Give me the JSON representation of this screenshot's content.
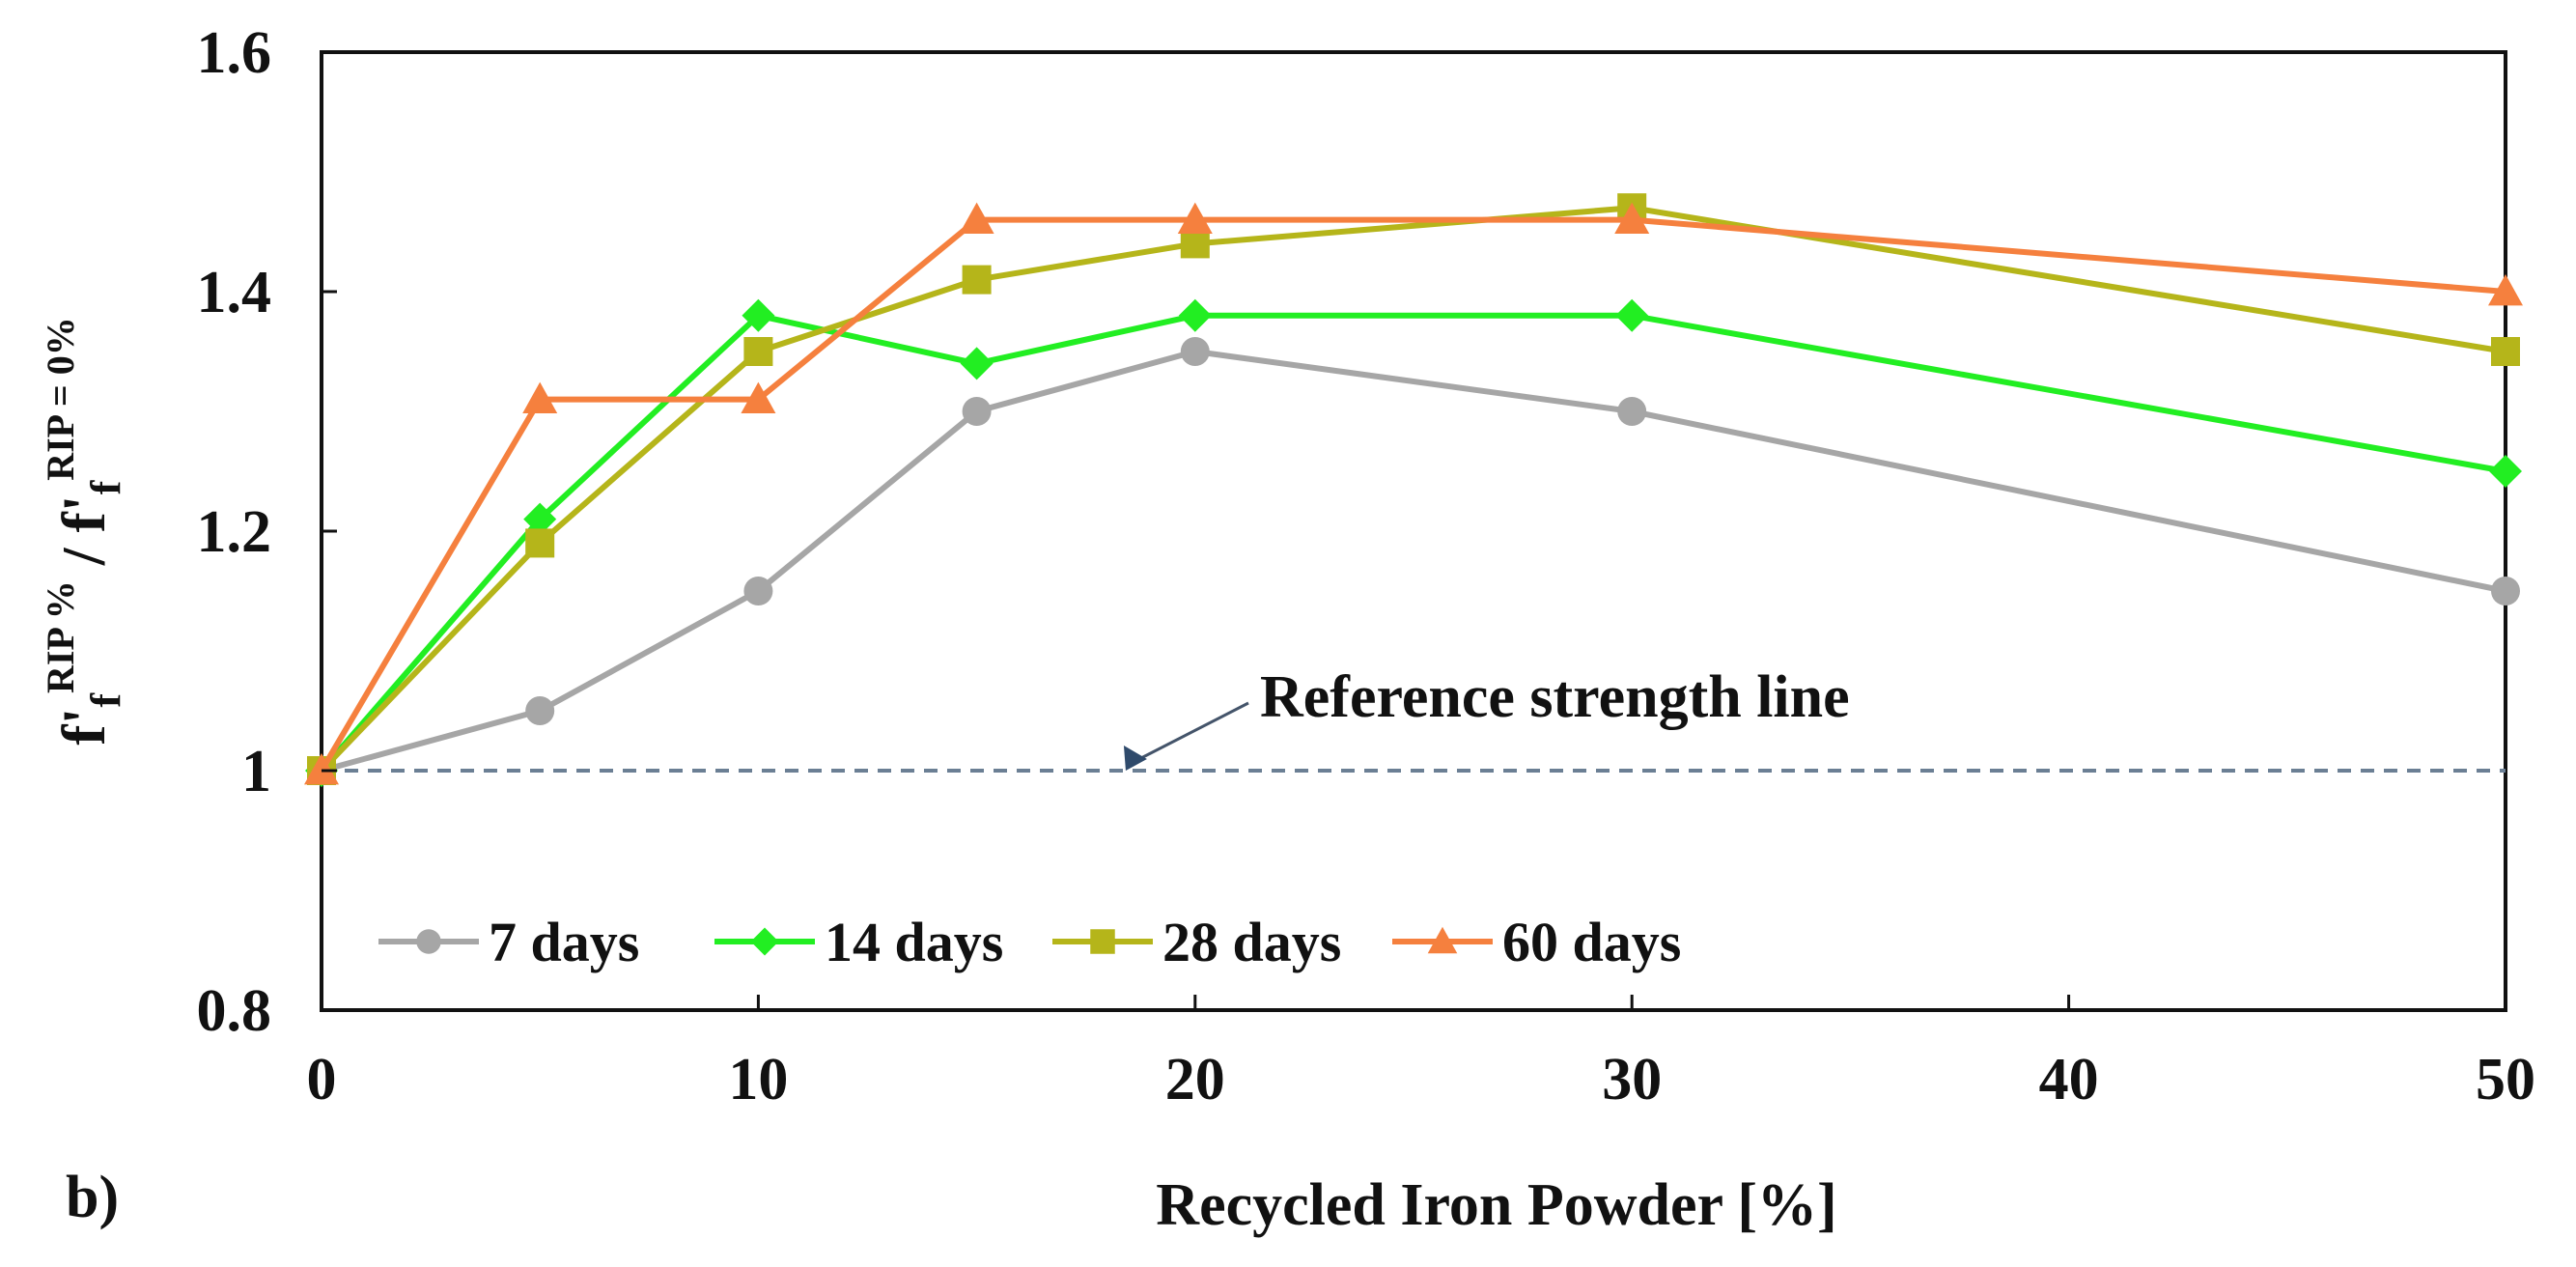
{
  "chart_data": {
    "type": "line",
    "panel_label": "b)",
    "xlabel": "Recycled Iron Powder [%]",
    "ylabel": {
      "base": "f'",
      "sub": "f",
      "sup_num": "RIP %",
      "divider": " / ",
      "sup_den": "RIP = 0%"
    },
    "x_ticks": [
      0,
      10,
      20,
      30,
      40,
      50
    ],
    "y_ticks": [
      0.8,
      1.0,
      1.2,
      1.4,
      1.6
    ],
    "y_tick_labels": [
      "0.8",
      "1",
      "1.2",
      "1.4",
      "1.6"
    ],
    "xlim": [
      0,
      50
    ],
    "ylim": [
      0.8,
      1.6
    ],
    "x": [
      0,
      5,
      10,
      15,
      20,
      30,
      50
    ],
    "series": [
      {
        "name": "7 days",
        "color": "#a6a6a6",
        "marker": "circle",
        "values": [
          1.0,
          1.05,
          1.15,
          1.3,
          1.35,
          1.3,
          1.15
        ]
      },
      {
        "name": "14 days",
        "color": "#22ee22",
        "marker": "diamond",
        "values": [
          1.0,
          1.21,
          1.38,
          1.34,
          1.38,
          1.38,
          1.25
        ]
      },
      {
        "name": "28 days",
        "color": "#b5b51a",
        "marker": "square",
        "values": [
          1.0,
          1.19,
          1.35,
          1.41,
          1.44,
          1.47,
          1.35
        ]
      },
      {
        "name": "60 days",
        "color": "#f5803e",
        "marker": "triangle",
        "values": [
          1.0,
          1.31,
          1.31,
          1.46,
          1.46,
          1.46,
          1.4
        ]
      }
    ],
    "reference_line": {
      "y": 1.0,
      "color": "#6b7f94",
      "style": "dashed"
    },
    "annotation": {
      "text": "Reference strength line",
      "arrow_to_x": 18.5,
      "arrow_to_y": 1.0
    }
  }
}
